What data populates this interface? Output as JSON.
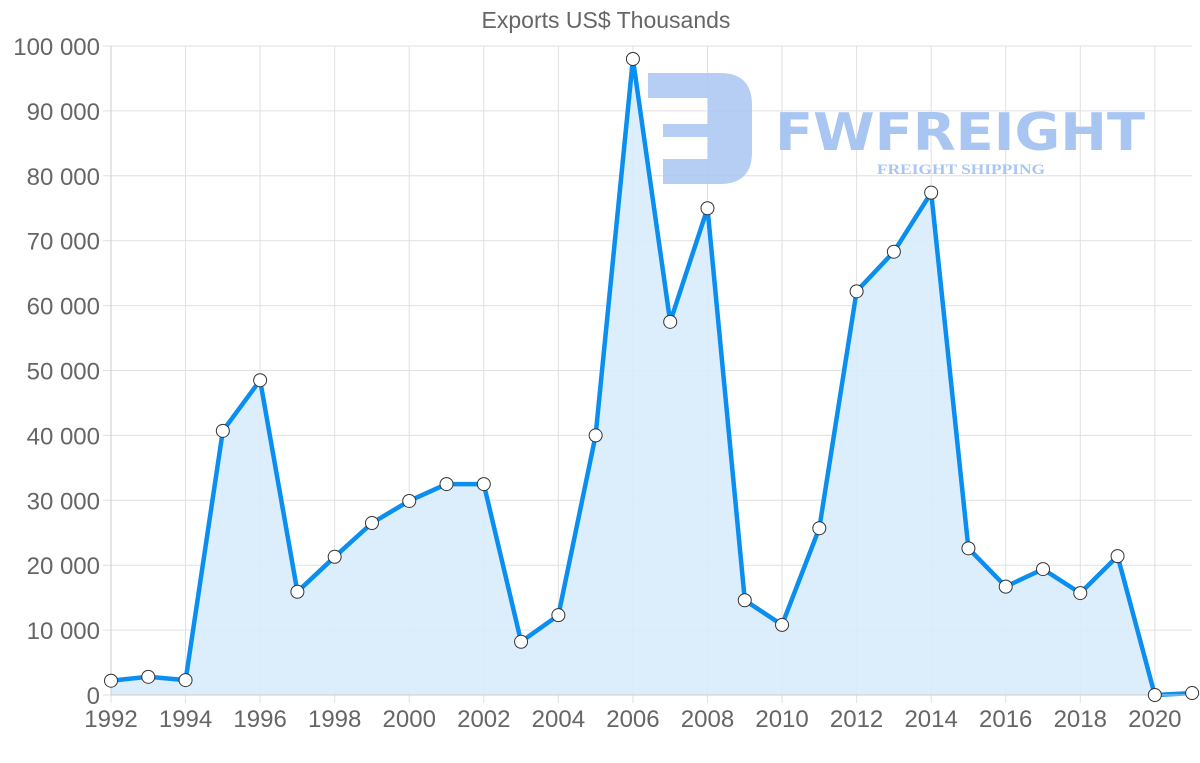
{
  "chart_data": {
    "type": "area",
    "title": "Exports US$ Thousands",
    "xlabel": "",
    "ylabel": "",
    "x": [
      1992,
      1993,
      1994,
      1995,
      1996,
      1997,
      1998,
      1999,
      2000,
      2001,
      2002,
      2003,
      2004,
      2005,
      2006,
      2007,
      2008,
      2009,
      2010,
      2011,
      2012,
      2013,
      2014,
      2015,
      2016,
      2017,
      2018,
      2019,
      2020,
      2021
    ],
    "series": [
      {
        "name": "Exports US$ Thousands",
        "values": [
          2200,
          2800,
          2300,
          40700,
          48500,
          15900,
          21300,
          26500,
          29900,
          32500,
          32500,
          8200,
          12300,
          40000,
          98000,
          57500,
          75000,
          14600,
          10800,
          25700,
          62200,
          68300,
          77400,
          22600,
          16700,
          19400,
          15700,
          21400,
          0,
          300
        ]
      }
    ],
    "ylim": [
      0,
      100000
    ],
    "yticks": [
      0,
      10000,
      20000,
      30000,
      40000,
      50000,
      60000,
      70000,
      80000,
      90000,
      100000
    ],
    "ytick_labels": [
      "0",
      "10 000",
      "20 000",
      "30 000",
      "40 000",
      "50 000",
      "60 000",
      "70 000",
      "80 000",
      "90 000",
      "100 000"
    ],
    "xtick_labels": [
      "1992",
      "1994",
      "1996",
      "1998",
      "2000",
      "2002",
      "2004",
      "2006",
      "2008",
      "2010",
      "2012",
      "2014",
      "2016",
      "2018",
      "2020"
    ],
    "grid": true,
    "legend": "none",
    "colors": {
      "line": "#0a8ff0",
      "fill": "#d8ecfc",
      "point_fill": "#ffffff",
      "point_stroke": "#333333",
      "grid": "#e0e0e0",
      "text": "#666666"
    }
  },
  "watermark": {
    "brand": "FWFREIGHT",
    "tagline": "FREIGHT SHIPPING",
    "color": "#a9c6f2"
  }
}
